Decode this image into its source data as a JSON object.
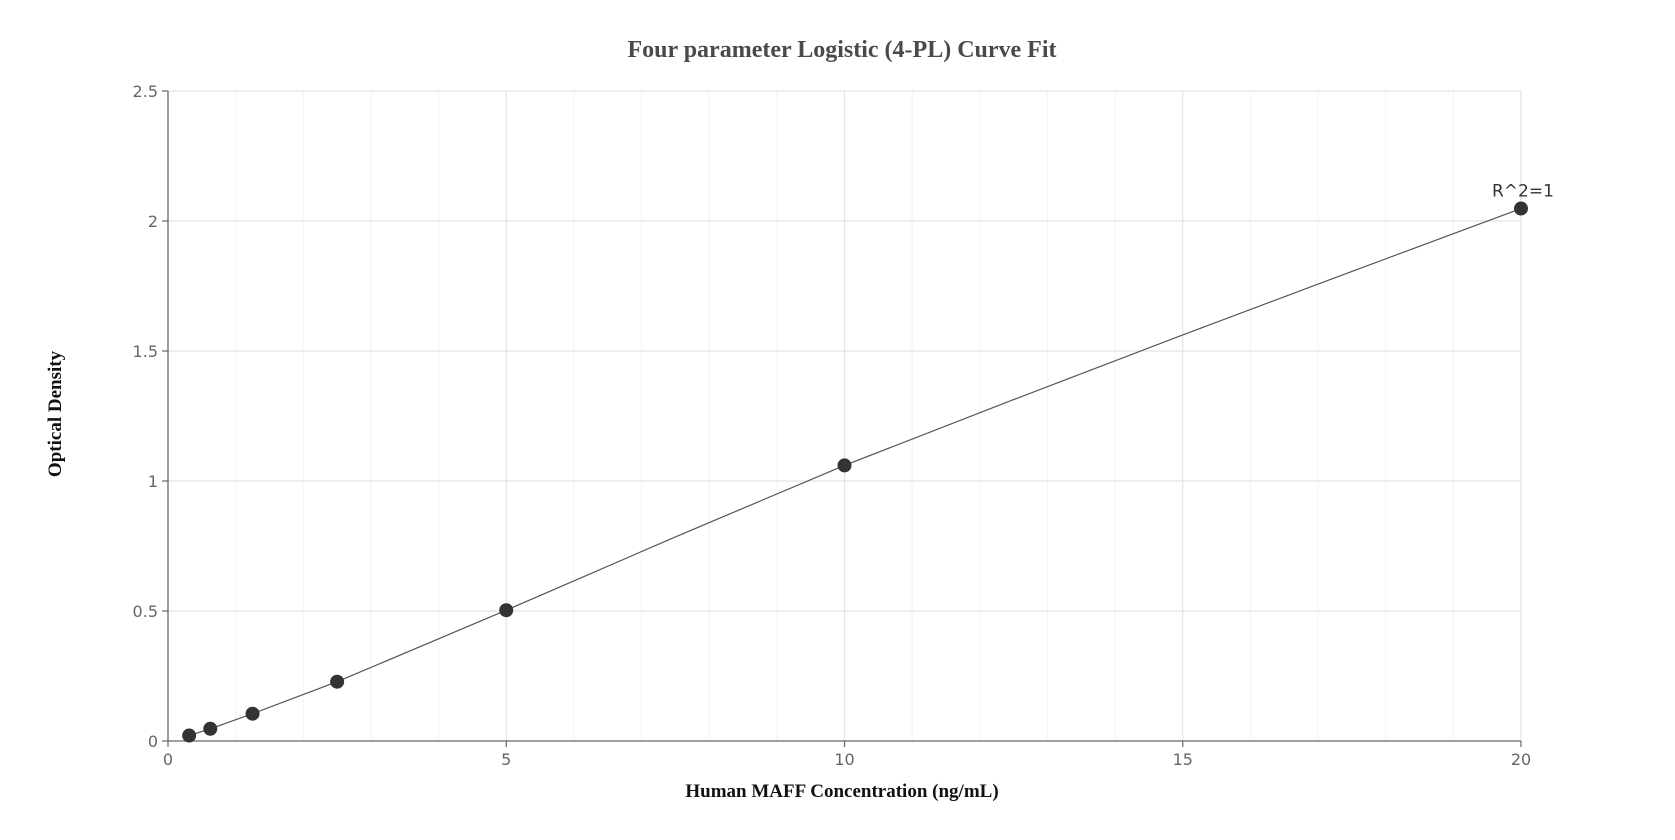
{
  "chart_data": {
    "type": "scatter",
    "title": "Four parameter Logistic (4-PL) Curve Fit",
    "xlabel": "Human MAFF Concentration (ng/mL)",
    "ylabel": "Optical Density",
    "xlim": [
      0,
      20
    ],
    "ylim": [
      0,
      2.5
    ],
    "x_ticks": [
      0,
      5,
      10,
      15,
      20
    ],
    "x_tick_labels": [
      "0",
      "5",
      "10",
      "15",
      "20"
    ],
    "y_ticks": [
      0,
      0.5,
      1,
      1.5,
      2,
      2.5
    ],
    "y_tick_labels": [
      "0",
      "0.5",
      "1",
      "1.5",
      "2",
      "2.5"
    ],
    "grid": true,
    "series": [
      {
        "x": [
          0.3125,
          0.625,
          1.25,
          2.5,
          5,
          10,
          20
        ],
        "y": [
          0.021,
          0.047,
          0.105,
          0.228,
          0.503,
          1.06,
          2.048
        ],
        "color": "#333333"
      }
    ],
    "fit_curve": {
      "x": [
        0.3125,
        0.625,
        1.25,
        2.5,
        5,
        7.5,
        10,
        12.5,
        15,
        17.5,
        20
      ],
      "y": [
        0.021,
        0.047,
        0.105,
        0.228,
        0.503,
        0.785,
        1.06,
        1.313,
        1.562,
        1.806,
        2.048
      ],
      "color": "#555555"
    },
    "annotations": [
      {
        "text": "R^2=1",
        "x": 20,
        "y": 2.048
      }
    ]
  }
}
